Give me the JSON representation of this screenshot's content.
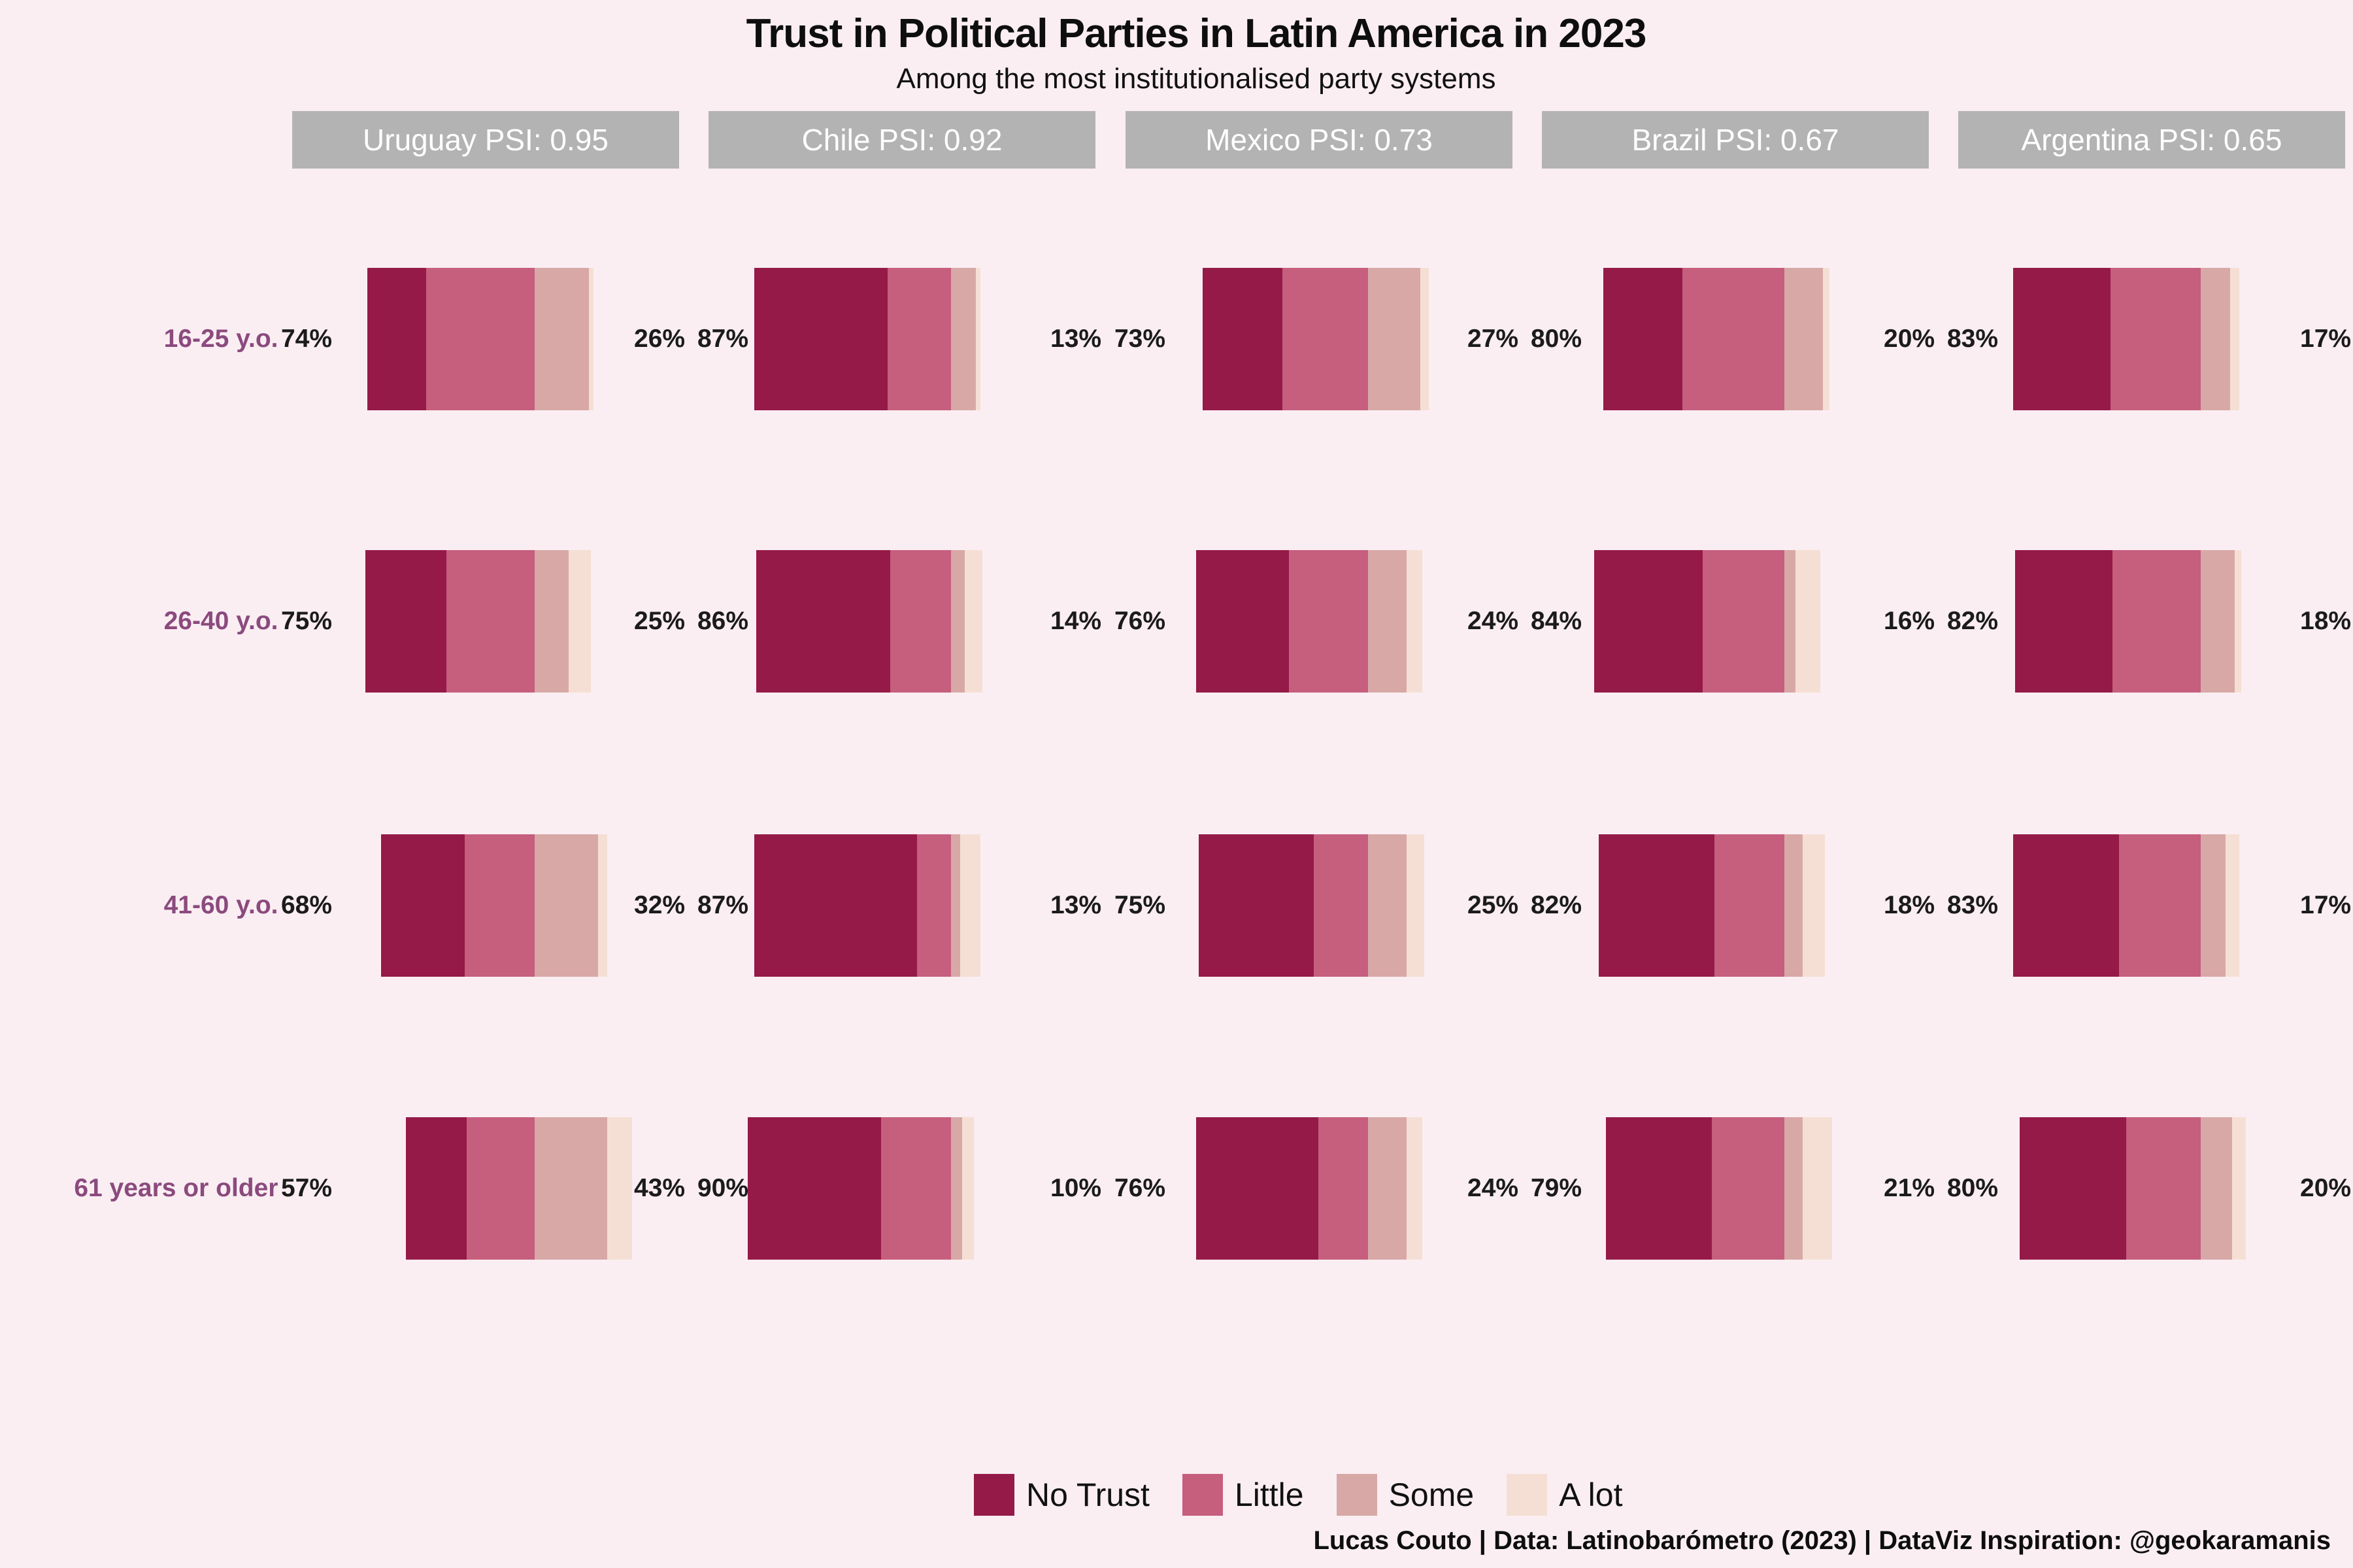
{
  "page": {
    "background": "#FAEEF2"
  },
  "header": {
    "title": "Trust in Political Parties in Latin America in 2023",
    "subtitle": "Among the most institutionalised party systems"
  },
  "footer": {
    "credit": "Lucas Couto | Data: Latinobarómetro (2023) | DataViz Inspiration: @geokaramanis"
  },
  "chart_data": {
    "type": "bar",
    "variant": "diverging-stacked-bar-grid",
    "title": "Trust in Political Parties in Latin America in 2023",
    "subtitle": "Among the most institutionalised party systems",
    "alignment_note": "Each bar is 100% wide; bars in a column are aligned on the boundary between Little and Some. Left printed % = No Trust + Little, right printed % = Some + A lot.",
    "row_categories": [
      "16-25 y.o.",
      "26-40 y.o.",
      "41-60 y.o.",
      "61 years or older"
    ],
    "colors": {
      "no_trust": "#951A48",
      "little": "#C65E7E",
      "some": "#D8A8A7",
      "a_lot": "#F5DFD4",
      "background": "#FAEEF2",
      "header_box": "#B3B3B3",
      "header_text": "#FFFFFF",
      "age_label": "#8B4A7E",
      "pct_label": "#1B1B1B"
    },
    "legend": [
      {
        "label": "No Trust",
        "color": "#951A48"
      },
      {
        "label": "Little",
        "color": "#C65E7E"
      },
      {
        "label": "Some",
        "color": "#D8A8A7"
      },
      {
        "label": "A lot",
        "color": "#F5DFD4"
      }
    ],
    "columns": [
      {
        "country": "Uruguay",
        "psi": "0.95",
        "header": "Uruguay PSI: 0.95",
        "rows": [
          {
            "age_label": "16-25 y.o.",
            "distrust": 74,
            "trust": 26,
            "distrust_label": "74%",
            "trust_label": "26%",
            "no_trust": 26,
            "little": 48,
            "some": 24,
            "a_lot": 2
          },
          {
            "age_label": "26-40 y.o.",
            "distrust": 75,
            "trust": 25,
            "distrust_label": "75%",
            "trust_label": "25%",
            "no_trust": 36,
            "little": 39,
            "some": 15,
            "a_lot": 10
          },
          {
            "age_label": "41-60 y.o.",
            "distrust": 68,
            "trust": 32,
            "distrust_label": "68%",
            "trust_label": "32%",
            "no_trust": 37,
            "little": 31,
            "some": 28,
            "a_lot": 4
          },
          {
            "age_label": "61 years or older",
            "distrust": 57,
            "trust": 43,
            "distrust_label": "57%",
            "trust_label": "43%",
            "no_trust": 27,
            "little": 30,
            "some": 32,
            "a_lot": 11
          }
        ]
      },
      {
        "country": "Chile",
        "psi": "0.92",
        "header": "Chile PSI: 0.92",
        "rows": [
          {
            "age_label": "16-25 y.o.",
            "distrust": 87,
            "trust": 13,
            "distrust_label": "87%",
            "trust_label": "13%",
            "no_trust": 59,
            "little": 28,
            "some": 11,
            "a_lot": 2
          },
          {
            "age_label": "26-40 y.o.",
            "distrust": 86,
            "trust": 14,
            "distrust_label": "86%",
            "trust_label": "14%",
            "no_trust": 59,
            "little": 27,
            "some": 6,
            "a_lot": 8
          },
          {
            "age_label": "41-60 y.o.",
            "distrust": 87,
            "trust": 13,
            "distrust_label": "87%",
            "trust_label": "13%",
            "no_trust": 72,
            "little": 15,
            "some": 4,
            "a_lot": 9
          },
          {
            "age_label": "61 years or older",
            "distrust": 90,
            "trust": 10,
            "distrust_label": "90%",
            "trust_label": "10%",
            "no_trust": 59,
            "little": 31,
            "some": 5,
            "a_lot": 5
          }
        ]
      },
      {
        "country": "Mexico",
        "psi": "0.73",
        "header": "Mexico PSI: 0.73",
        "rows": [
          {
            "age_label": "16-25 y.o.",
            "distrust": 73,
            "trust": 27,
            "distrust_label": "73%",
            "trust_label": "27%",
            "no_trust": 35,
            "little": 38,
            "some": 23,
            "a_lot": 4
          },
          {
            "age_label": "26-40 y.o.",
            "distrust": 76,
            "trust": 24,
            "distrust_label": "76%",
            "trust_label": "24%",
            "no_trust": 41,
            "little": 35,
            "some": 17,
            "a_lot": 7
          },
          {
            "age_label": "41-60 y.o.",
            "distrust": 75,
            "trust": 25,
            "distrust_label": "75%",
            "trust_label": "25%",
            "no_trust": 51,
            "little": 24,
            "some": 17,
            "a_lot": 8
          },
          {
            "age_label": "61 years or older",
            "distrust": 76,
            "trust": 24,
            "distrust_label": "76%",
            "trust_label": "24%",
            "no_trust": 54,
            "little": 22,
            "some": 17,
            "a_lot": 7
          }
        ]
      },
      {
        "country": "Brazil",
        "psi": "0.67",
        "header": "Brazil PSI: 0.67",
        "rows": [
          {
            "age_label": "16-25 y.o.",
            "distrust": 80,
            "trust": 20,
            "distrust_label": "80%",
            "trust_label": "20%",
            "no_trust": 35,
            "little": 45,
            "some": 17,
            "a_lot": 3
          },
          {
            "age_label": "26-40 y.o.",
            "distrust": 84,
            "trust": 16,
            "distrust_label": "84%",
            "trust_label": "16%",
            "no_trust": 48,
            "little": 36,
            "some": 5,
            "a_lot": 11
          },
          {
            "age_label": "41-60 y.o.",
            "distrust": 82,
            "trust": 18,
            "distrust_label": "82%",
            "trust_label": "18%",
            "no_trust": 51,
            "little": 31,
            "some": 8,
            "a_lot": 10
          },
          {
            "age_label": "61 years or older",
            "distrust": 79,
            "trust": 21,
            "distrust_label": "79%",
            "trust_label": "21%",
            "no_trust": 47,
            "little": 32,
            "some": 8,
            "a_lot": 13
          }
        ]
      },
      {
        "country": "Argentina",
        "psi": "0.65",
        "header": "Argentina PSI: 0.65",
        "rows": [
          {
            "age_label": "16-25 y.o.",
            "distrust": 83,
            "trust": 17,
            "distrust_label": "83%",
            "trust_label": "17%",
            "no_trust": 43,
            "little": 40,
            "some": 13,
            "a_lot": 4
          },
          {
            "age_label": "26-40 y.o.",
            "distrust": 82,
            "trust": 18,
            "distrust_label": "82%",
            "trust_label": "18%",
            "no_trust": 43,
            "little": 39,
            "some": 15,
            "a_lot": 3
          },
          {
            "age_label": "41-60 y.o.",
            "distrust": 83,
            "trust": 17,
            "distrust_label": "83%",
            "trust_label": "17%",
            "no_trust": 47,
            "little": 36,
            "some": 11,
            "a_lot": 6
          },
          {
            "age_label": "61 years or older",
            "distrust": 80,
            "trust": 20,
            "distrust_label": "80%",
            "trust_label": "20%",
            "no_trust": 47,
            "little": 33,
            "some": 14,
            "a_lot": 6
          }
        ]
      }
    ]
  }
}
